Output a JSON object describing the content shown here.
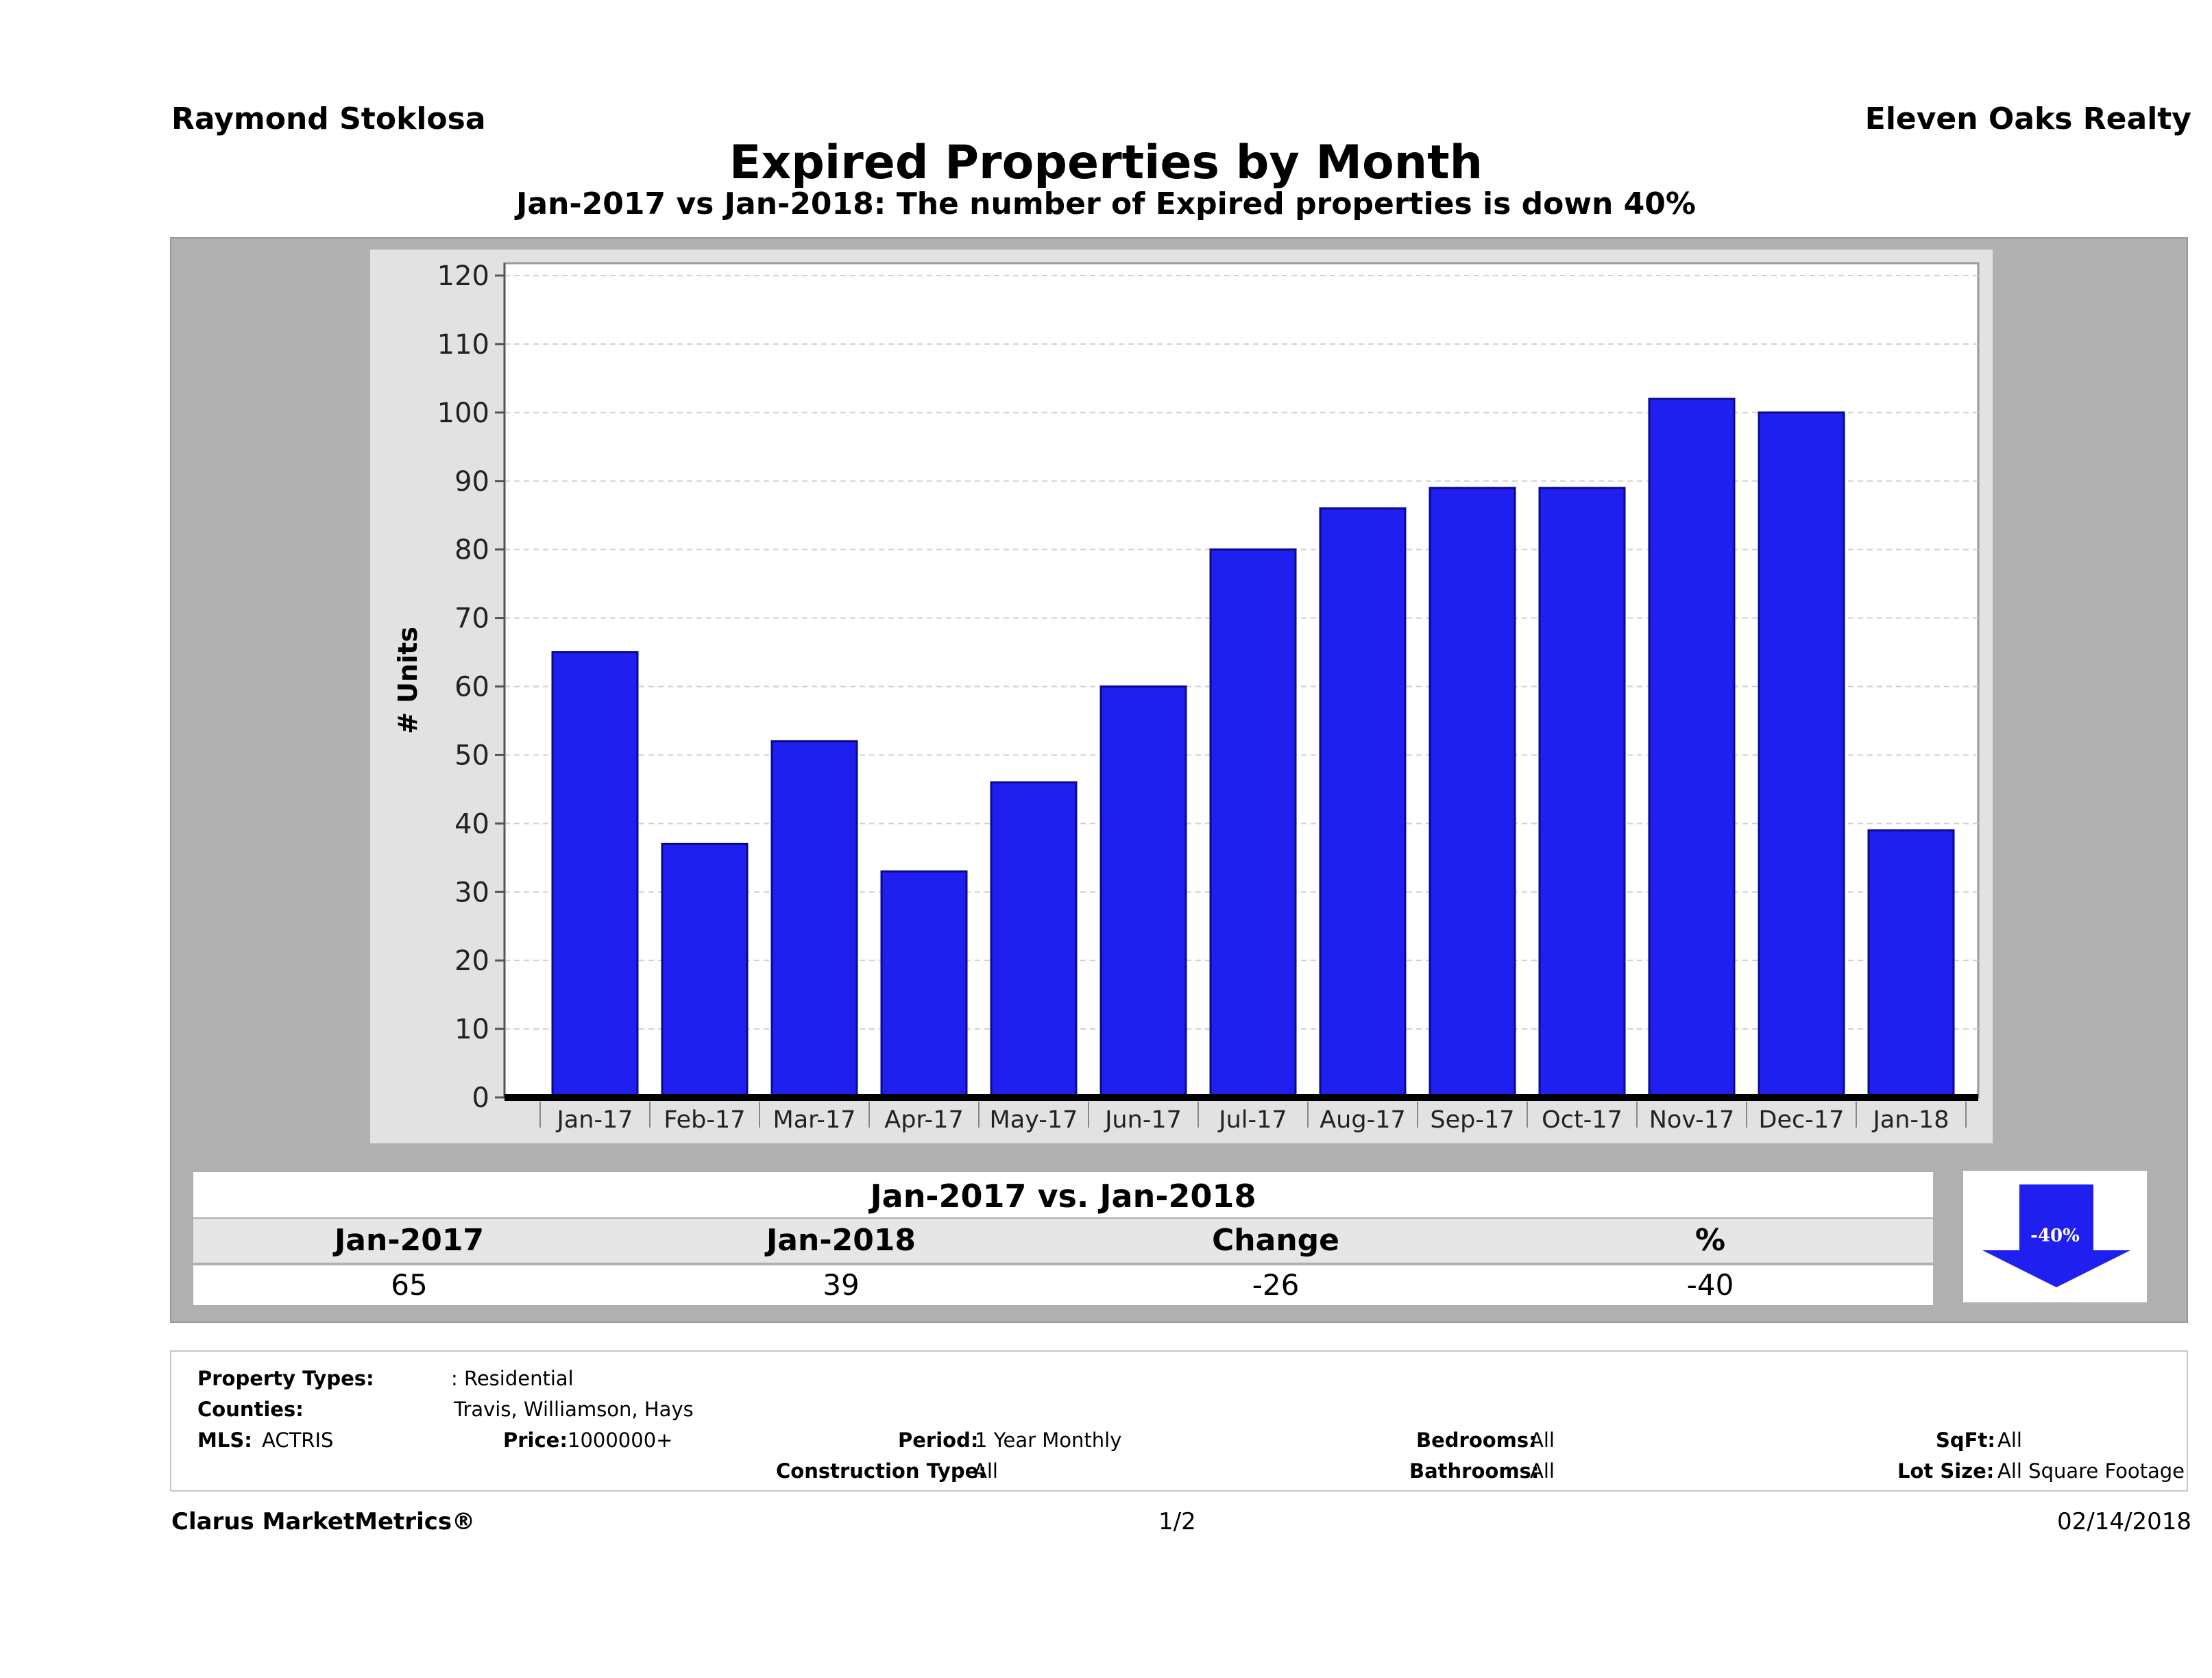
{
  "header": {
    "agent": "Raymond Stoklosa",
    "brokerage": "Eleven Oaks Realty",
    "title": "Expired Properties by Month",
    "subtitle": "Jan-2017 vs Jan-2018: The number of Expired  properties is down 40%"
  },
  "chart_data": {
    "type": "bar",
    "categories": [
      "Jan-17",
      "Feb-17",
      "Mar-17",
      "Apr-17",
      "May-17",
      "Jun-17",
      "Jul-17",
      "Aug-17",
      "Sep-17",
      "Oct-17",
      "Nov-17",
      "Dec-17",
      "Jan-18"
    ],
    "values": [
      65,
      37,
      52,
      33,
      46,
      60,
      80,
      86,
      89,
      89,
      102,
      100,
      39
    ],
    "ylabel": "# Units",
    "xlabel": "",
    "ylim": [
      0,
      120
    ],
    "yticks": [
      0,
      10,
      20,
      30,
      40,
      50,
      60,
      70,
      80,
      90,
      100,
      110,
      120
    ],
    "bar_color": "#1f1ff0",
    "grid": true
  },
  "comparison": {
    "header": "Jan-2017 vs. Jan-2018",
    "columns": [
      "Jan-2017",
      "Jan-2018",
      "Change",
      "%"
    ],
    "values": [
      "65",
      "39",
      "-26",
      "-40"
    ],
    "badge": "-40%",
    "badge_color": "#1f1ff0"
  },
  "filters": {
    "property_types_label": "Property Types:",
    "property_types_value": ": Residential",
    "counties_label": "Counties:",
    "counties_value": "Travis, Williamson, Hays",
    "mls_label": "MLS:",
    "mls_value": "ACTRIS",
    "price_label": "Price:",
    "price_value": "1000000+",
    "period_label": "Period:",
    "period_value": "1 Year Monthly",
    "construction_label": "Construction Type:",
    "construction_value": "All",
    "bedrooms_label": "Bedrooms:",
    "bedrooms_value": "All",
    "bathrooms_label": "Bathrooms:",
    "bathrooms_value": "All",
    "sqft_label": "SqFt:",
    "sqft_value": "All",
    "lotsize_label": "Lot Size:",
    "lotsize_value": "All Square Footage"
  },
  "footer": {
    "brand": "Clarus MarketMetrics®",
    "page": "1/2",
    "date": "02/14/2018"
  }
}
